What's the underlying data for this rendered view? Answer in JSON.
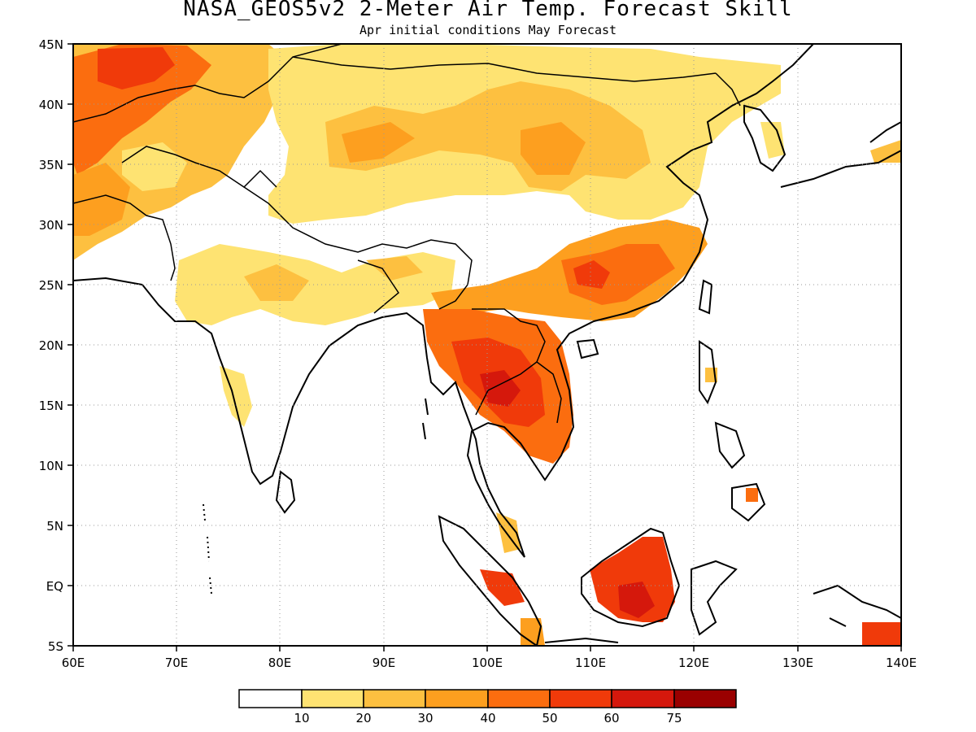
{
  "title": "NASA_GEOS5v2 2-Meter Air Temp. Forecast Skill",
  "subtitle": "Apr initial conditions  May Forecast",
  "map": {
    "lon_range": [
      60,
      140
    ],
    "lat_range": [
      -5,
      45
    ],
    "x_ticks": [
      "60E",
      "70E",
      "80E",
      "90E",
      "100E",
      "110E",
      "120E",
      "130E",
      "140E"
    ],
    "y_ticks": [
      "5S",
      "EQ",
      "5N",
      "10N",
      "15N",
      "20N",
      "25N",
      "30N",
      "35N",
      "40N",
      "45N"
    ],
    "grid": true
  },
  "legend": {
    "colors": [
      "#ffffff",
      "#fee372",
      "#fdc040",
      "#fd9f1f",
      "#fb6d0f",
      "#f03a0a",
      "#d5180c",
      "#9a0000"
    ],
    "labels": [
      "10",
      "20",
      "30",
      "40",
      "50",
      "60",
      "75"
    ]
  }
}
